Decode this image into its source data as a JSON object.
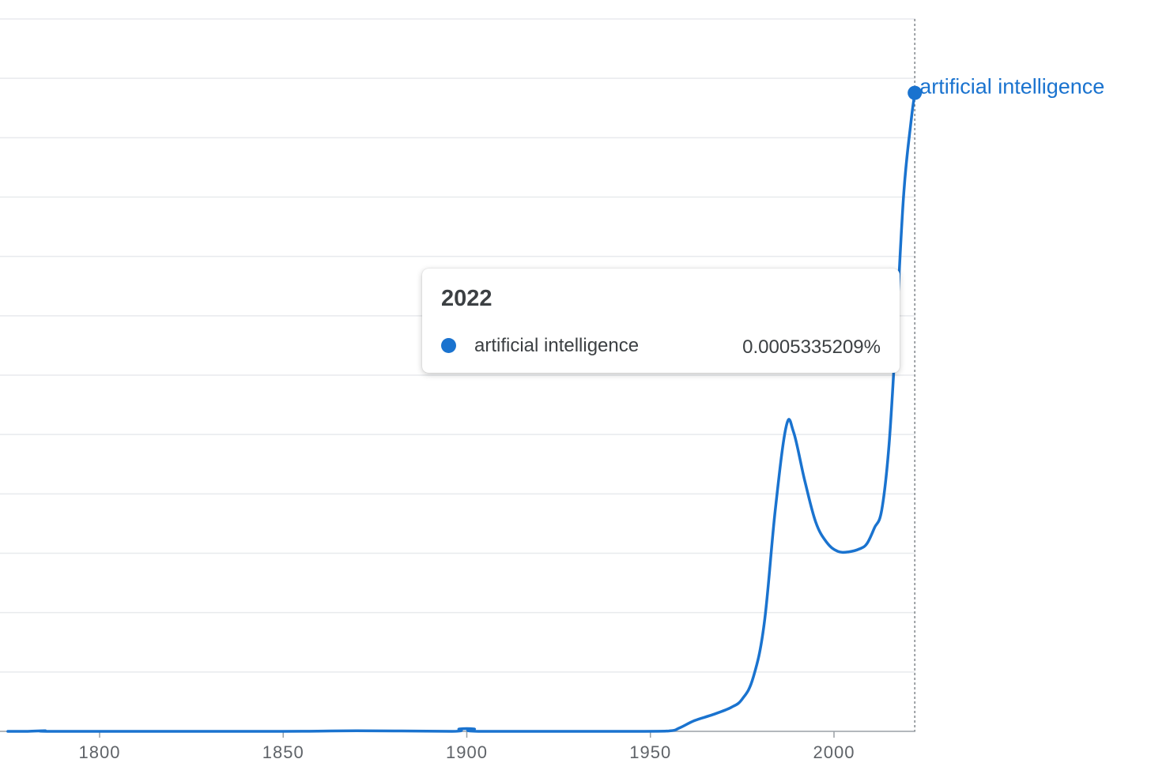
{
  "chart_data": {
    "type": "line",
    "x_ticks": [
      1800,
      1850,
      1900,
      1950,
      2000
    ],
    "xlim": [
      1775,
      2022
    ],
    "ylim": [
      0,
      0.00059
    ],
    "y_grid_lines": 12,
    "grid": true,
    "series": [
      {
        "name": "artificial intelligence",
        "color": "#1a73cf",
        "points": [
          [
            1775,
            0
          ],
          [
            1780,
            0
          ],
          [
            1785,
            5e-07
          ],
          [
            1790,
            0
          ],
          [
            1850,
            0
          ],
          [
            1870,
            5e-07
          ],
          [
            1896,
            0
          ],
          [
            1898,
            2e-06
          ],
          [
            1902,
            2e-06
          ],
          [
            1904,
            0
          ],
          [
            1945,
            0
          ],
          [
            1955,
            3e-07
          ],
          [
            1958,
            3e-06
          ],
          [
            1962,
            9e-06
          ],
          [
            1967,
            1.4e-05
          ],
          [
            1972,
            2e-05
          ],
          [
            1975,
            2.7e-05
          ],
          [
            1978,
            4.5e-05
          ],
          [
            1981,
            9e-05
          ],
          [
            1984,
            0.000185
          ],
          [
            1987,
            0.000255
          ],
          [
            1989,
            0.00025
          ],
          [
            1992,
            0.00021
          ],
          [
            1995,
            0.000175
          ],
          [
            1998,
            0.000158
          ],
          [
            2001,
            0.0001505
          ],
          [
            2004,
            0.00015
          ],
          [
            2007,
            0.0001525
          ],
          [
            2009,
            0.000157
          ],
          [
            2011,
            0.00017
          ],
          [
            2013,
            0.000185
          ],
          [
            2015,
            0.00024
          ],
          [
            2017,
            0.00034
          ],
          [
            2019,
            0.00045
          ],
          [
            2021,
            0.00051
          ],
          [
            2022,
            0.0005335209
          ]
        ]
      }
    ],
    "end_label": "artificial intelligence",
    "hover_year": 2022,
    "tooltip": {
      "title": "2022",
      "series": "artificial intelligence",
      "value": "0.0005335209%"
    }
  }
}
